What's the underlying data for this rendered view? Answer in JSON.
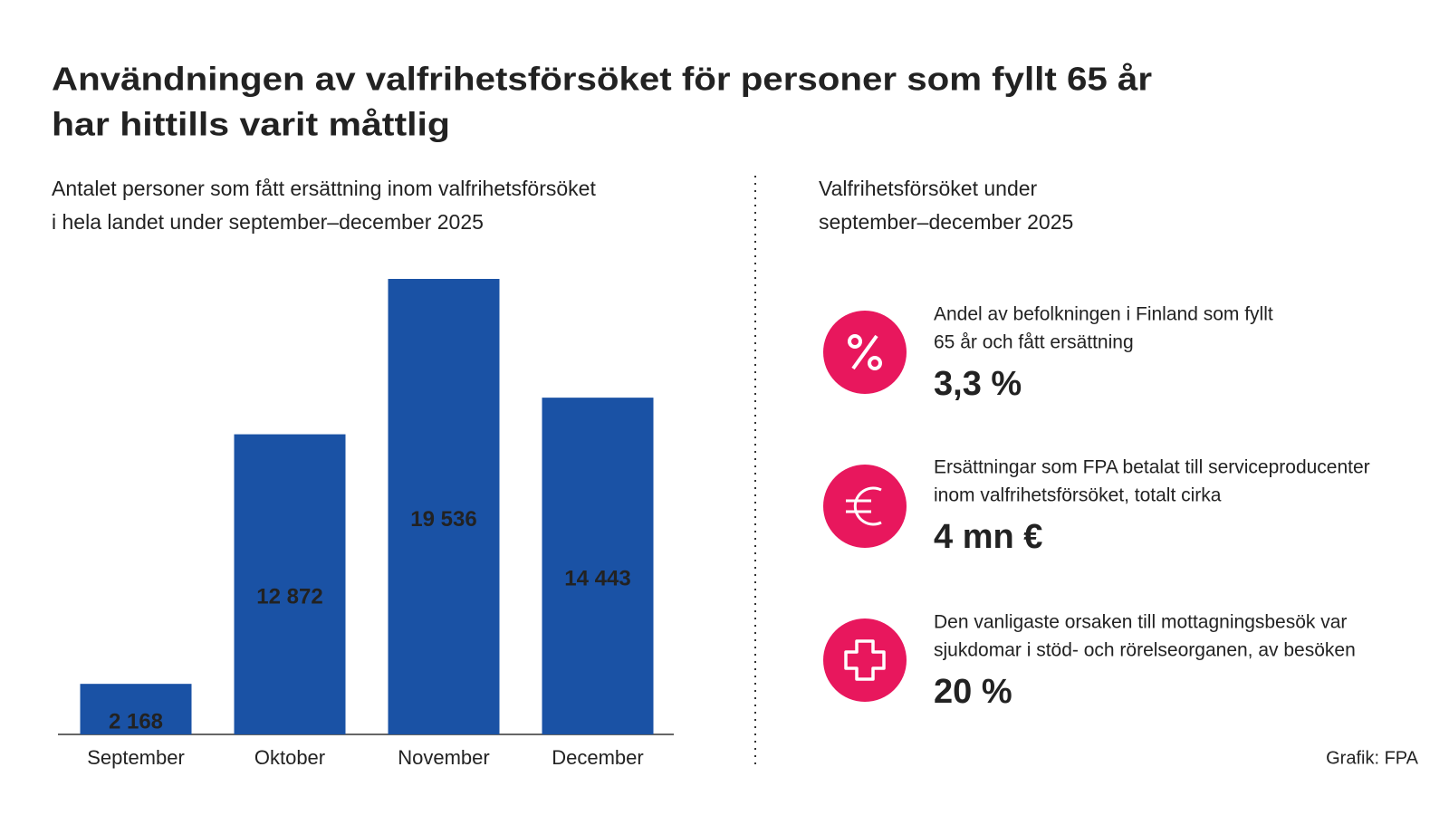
{
  "title": [
    "Användningen av valfrihetsförsöket för personer som fyllt 65 år",
    "har hittills varit måttlig"
  ],
  "chart_data": {
    "type": "bar",
    "subtitle": [
      "Antalet personer som fått ersättning inom valfrihetsförsöket",
      "i hela landet under september–december 2025"
    ],
    "categories": [
      "September",
      "Oktober",
      "November",
      "December"
    ],
    "values": [
      2168,
      12872,
      19536,
      14443
    ],
    "value_labels": [
      "2 168",
      "12 872",
      "19 536",
      "14 443"
    ],
    "color": "#1a52a5"
  },
  "facts": {
    "heading": [
      "Valfrihetsförsöket under",
      "september–december 2025"
    ],
    "items": [
      {
        "label": [
          "Andel av befolkningen i Finland som fyllt",
          "65 år och fått ersättning"
        ],
        "value": "3,3 %"
      },
      {
        "label": [
          "Ersättningar som FPA betalat till serviceproducenter",
          "inom valfrihetsförsöket, totalt cirka"
        ],
        "value": "4 mn €"
      },
      {
        "label": [
          "Den vanligaste orsaken till mottagningsbesök var",
          "sjukdomar i stöd- och rörelseorganen, av besöken"
        ],
        "value": "20 %"
      }
    ]
  },
  "credit": "Grafik: FPA"
}
